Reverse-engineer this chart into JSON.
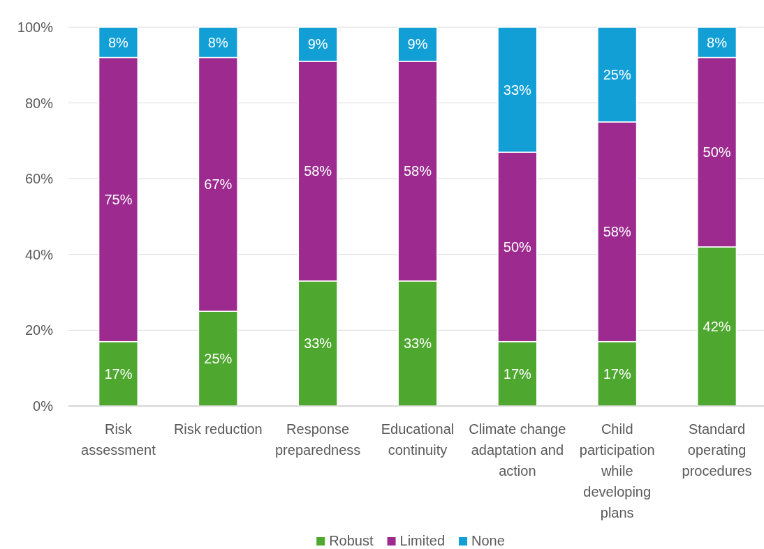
{
  "chart_data": {
    "type": "bar",
    "stacked": true,
    "categories": [
      "Risk assessment",
      "Risk reduction",
      "Response preparedness",
      "Educational continuity",
      "Climate change adaptation and action",
      "Child participation while developing plans",
      "Standard operating procedures"
    ],
    "series": [
      {
        "name": "Robust",
        "color": "#4ea72e",
        "values": [
          17,
          25,
          33,
          33,
          17,
          17,
          42
        ],
        "value_labels": [
          "17%",
          "25%",
          "33%",
          "33%",
          "17%",
          "17%",
          "42%"
        ]
      },
      {
        "name": "Limited",
        "color": "#9c2a8f",
        "values": [
          75,
          67,
          58,
          58,
          50,
          58,
          50
        ],
        "value_labels": [
          "75%",
          "67%",
          "58%",
          "58%",
          "50%",
          "58%",
          "50%"
        ]
      },
      {
        "name": "None",
        "color": "#119fd6",
        "values": [
          8,
          8,
          9,
          9,
          33,
          25,
          8
        ],
        "value_labels": [
          "8%",
          "8%",
          "9%",
          "9%",
          "33%",
          "25%",
          "8%"
        ]
      }
    ],
    "ylim": [
      0,
      100
    ],
    "yticks": [
      {
        "value": 0,
        "label": "0%"
      },
      {
        "value": 20,
        "label": "20%"
      },
      {
        "value": 40,
        "label": "40%"
      },
      {
        "value": 60,
        "label": "60%"
      },
      {
        "value": 80,
        "label": "80%"
      },
      {
        "value": 100,
        "label": "100%"
      }
    ],
    "grid": "y",
    "legend": "bottom"
  }
}
